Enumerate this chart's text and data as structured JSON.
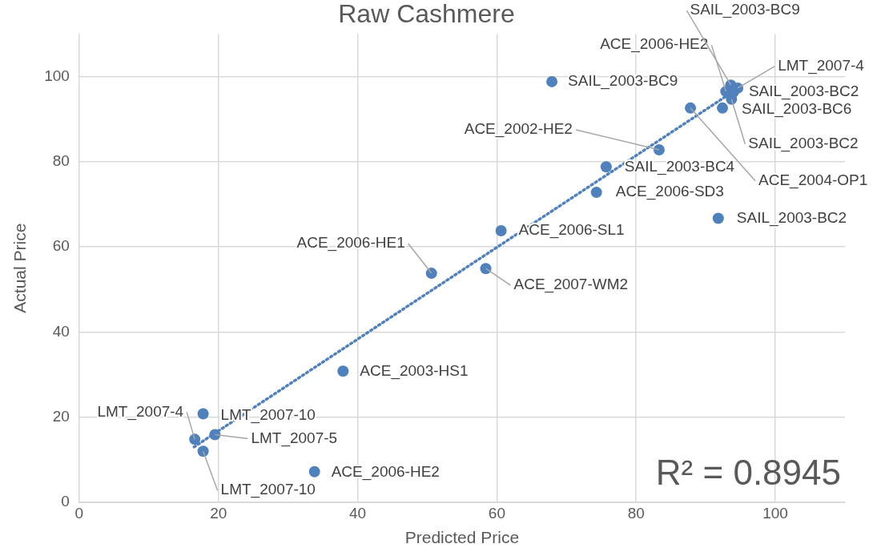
{
  "chart_data": {
    "type": "scatter",
    "title": "Raw Cashmere",
    "xlabel": "Predicted Price",
    "ylabel": "Actual Price",
    "xlim": [
      0,
      110
    ],
    "ylim": [
      0,
      110
    ],
    "xticks": [
      0,
      20,
      40,
      60,
      80,
      100
    ],
    "yticks": [
      0,
      20,
      40,
      60,
      80,
      100
    ],
    "grid": true,
    "legend": false,
    "marker": "circle",
    "series": [
      {
        "type": "scatter",
        "color": "#4f81bd",
        "x": [
          67.9,
          92.9,
          93.6,
          94.6,
          94.0,
          92.4,
          93.7,
          87.8,
          83.3,
          75.7,
          74.3,
          91.8,
          60.6,
          50.6,
          58.4,
          37.9,
          17.8,
          16.6,
          19.5,
          17.8,
          33.8
        ],
        "values": [
          98.8,
          96.5,
          98.0,
          97.3,
          96.4,
          92.6,
          94.7,
          92.6,
          82.8,
          78.8,
          72.8,
          66.7,
          63.8,
          53.8,
          54.9,
          30.8,
          20.8,
          14.8,
          15.9,
          12.0,
          7.2
        ]
      },
      {
        "type": "line",
        "color": "#4f81bd",
        "line_style": "dotted",
        "marker": "none",
        "x": [
          16.5,
          93.5
        ],
        "values": [
          13,
          96
        ]
      }
    ],
    "annotations": [
      {
        "text": "SAIL_2003-BC9",
        "x": 67.9,
        "y": 98.8
      },
      {
        "text": "ACE_2006-HE2",
        "x": 92.9,
        "y": 96.5
      },
      {
        "text": "SAIL_2003-BC9",
        "x": 93.6,
        "y": 98.0
      },
      {
        "text": "LMT_2007-4",
        "x": 94.6,
        "y": 97.3
      },
      {
        "text": "SAIL_2003-BC2",
        "x": 94.0,
        "y": 96.4
      },
      {
        "text": "SAIL_2003-BC6",
        "x": 92.4,
        "y": 92.6
      },
      {
        "text": "SAIL_2003-BC2",
        "x": 93.7,
        "y": 94.7
      },
      {
        "text": "ACE_2004-OP1",
        "x": 87.8,
        "y": 92.6
      },
      {
        "text": "ACE_2002-HE2",
        "x": 83.3,
        "y": 82.8
      },
      {
        "text": "SAIL_2003-BC4",
        "x": 75.7,
        "y": 78.8
      },
      {
        "text": "ACE_2006-SD3",
        "x": 74.3,
        "y": 72.8
      },
      {
        "text": "SAIL_2003-BC2",
        "x": 91.8,
        "y": 66.7
      },
      {
        "text": "ACE_2006-SL1",
        "x": 60.6,
        "y": 63.8
      },
      {
        "text": "ACE_2006-HE1",
        "x": 50.6,
        "y": 53.8
      },
      {
        "text": "ACE_2007-WM2",
        "x": 58.4,
        "y": 54.9
      },
      {
        "text": "ACE_2003-HS1",
        "x": 37.9,
        "y": 30.8
      },
      {
        "text": "LMT_2007-10",
        "x": 17.8,
        "y": 20.8
      },
      {
        "text": "LMT_2007-4",
        "x": 16.6,
        "y": 14.8
      },
      {
        "text": "LMT_2007-5",
        "x": 19.5,
        "y": 15.9
      },
      {
        "text": "LMT_2007-10",
        "x": 17.8,
        "y": 12.0
      },
      {
        "text": "ACE_2006-HE2",
        "x": 33.8,
        "y": 7.2
      },
      "R² = 0.8945"
    ]
  }
}
